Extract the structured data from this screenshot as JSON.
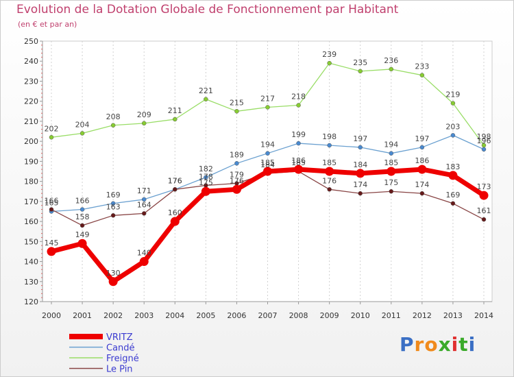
{
  "header": {
    "title": "Evolution de la Dotation Globale de Fonctionnement par Habitant",
    "subtitle": "(en € et par an)"
  },
  "logo": {
    "text": "Proxiti",
    "letters": [
      "P",
      "r",
      "o",
      "x",
      "i",
      "t",
      "i"
    ],
    "colors": [
      "#3a6fc4",
      "#f08a1c",
      "#f08a1c",
      "#3aaa2a",
      "#e03030",
      "#3aaa2a",
      "#3a6fc4"
    ]
  },
  "chart_data": {
    "type": "line",
    "x": [
      2000,
      2001,
      2002,
      2003,
      2004,
      2005,
      2006,
      2007,
      2008,
      2009,
      2010,
      2011,
      2012,
      2013,
      2014
    ],
    "ylim": [
      120,
      250
    ],
    "yticks": [
      120,
      130,
      140,
      150,
      160,
      170,
      180,
      190,
      200,
      210,
      220,
      230,
      240,
      250
    ],
    "grid": {
      "vertical": true,
      "horizontal": false
    },
    "legend_position": "bottom-left",
    "series": [
      {
        "name": "Freigné",
        "color": "#99dd66",
        "point_color": "#88cc33",
        "values": [
          202,
          204,
          208,
          209,
          211,
          221,
          215,
          217,
          218,
          239,
          235,
          236,
          233,
          219,
          198
        ],
        "labels": [
          "202",
          "204",
          "208",
          "209",
          "211",
          "221",
          "215",
          "217",
          "218",
          "239",
          "235",
          "236",
          "233",
          "219",
          "198"
        ]
      },
      {
        "name": "Candé",
        "color": "#6aa0d0",
        "point_color": "#4a8ad0",
        "values": [
          165,
          166,
          169,
          171,
          176,
          182,
          189,
          194,
          199,
          198,
          197,
          194,
          197,
          203,
          196
        ],
        "labels": [
          "165",
          "166",
          "169",
          "171",
          "176",
          "182",
          "189",
          "194",
          "199",
          "198",
          "197",
          "194",
          "197",
          "203",
          "196"
        ]
      },
      {
        "name": "Le Pin",
        "color": "#884444",
        "point_color": "#661a1a",
        "values": [
          166,
          158,
          163,
          164,
          176,
          178,
          179,
          184,
          185,
          176,
          174,
          175,
          174,
          169,
          161
        ],
        "labels": [
          "166",
          "158",
          "163",
          "164",
          "176",
          "178",
          "179",
          "184",
          "185",
          "176",
          "174",
          "175",
          "174",
          "169",
          "161"
        ]
      },
      {
        "name": "VRITZ",
        "color": "#ee0000",
        "point_color": "#ee0000",
        "values": [
          145,
          149,
          130,
          140,
          160,
          175,
          176,
          185,
          186,
          185,
          184,
          185,
          186,
          183,
          173
        ],
        "labels": [
          "145",
          "149",
          "130",
          "140",
          "160",
          "175",
          "176",
          "185",
          "186",
          "185",
          "184",
          "185",
          "186",
          "183",
          "173"
        ]
      }
    ],
    "legend": [
      "VRITZ",
      "Candé",
      "Freigné",
      "Le Pin"
    ]
  }
}
